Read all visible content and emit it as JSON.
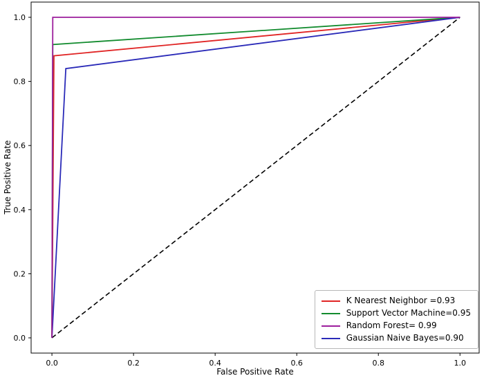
{
  "chart_data": {
    "type": "line",
    "title": "",
    "xlabel": "False Positive Rate",
    "ylabel": "True Positive Rate",
    "xlim": [
      -0.051,
      1.047
    ],
    "ylim": [
      -0.0475,
      1.0475
    ],
    "grid": false,
    "background": "#ffffff",
    "axis_color": "#000000",
    "xticks": [
      0.0,
      0.2,
      0.4,
      0.6,
      0.8,
      1.0
    ],
    "xtick_labels": [
      "0.0",
      "0.2",
      "0.4",
      "0.6",
      "0.8",
      "1.0"
    ],
    "yticks": [
      0.0,
      0.2,
      0.4,
      0.6,
      0.8,
      1.0
    ],
    "ytick_labels": [
      "0.0",
      "0.2",
      "0.4",
      "0.6",
      "0.8",
      "1.0"
    ],
    "legend_position": "lower right",
    "series": [
      {
        "name": "chance-diagonal",
        "color": "#000000",
        "dashed": true,
        "width": 1.6,
        "x": [
          0,
          1
        ],
        "y": [
          0,
          1
        ]
      },
      {
        "name": "K Nearest Neighbor",
        "auc": "0.93",
        "color": "#e02424",
        "dashed": false,
        "width": 1.8,
        "x": [
          0,
          0.005,
          1
        ],
        "y": [
          0,
          0.88,
          1
        ]
      },
      {
        "name": "Support Vector Machine",
        "auc": "0.95",
        "color": "#128b2e",
        "dashed": false,
        "width": 1.8,
        "x": [
          0,
          0.002,
          1
        ],
        "y": [
          0,
          0.915,
          1
        ]
      },
      {
        "name": "Gaussian Naive Bayes",
        "auc": "0.90",
        "color": "#2a2ab8",
        "dashed": false,
        "width": 1.8,
        "x": [
          0,
          0.034,
          1
        ],
        "y": [
          0,
          0.84,
          1
        ]
      },
      {
        "name": "Random Forest",
        "auc": "0.99",
        "color": "#9c1d9c",
        "dashed": false,
        "width": 1.8,
        "x": [
          0,
          0.002,
          1
        ],
        "y": [
          0,
          1,
          1
        ]
      }
    ],
    "legend": [
      {
        "label": "K Nearest Neighbor =0.93",
        "color": "#e02424"
      },
      {
        "label": "Support Vector Machine=0.95",
        "color": "#128b2e"
      },
      {
        "label": "Random Forest= 0.99",
        "color": "#9c1d9c"
      },
      {
        "label": "Gaussian Naive Bayes=0.90",
        "color": "#2a2ab8"
      }
    ]
  }
}
